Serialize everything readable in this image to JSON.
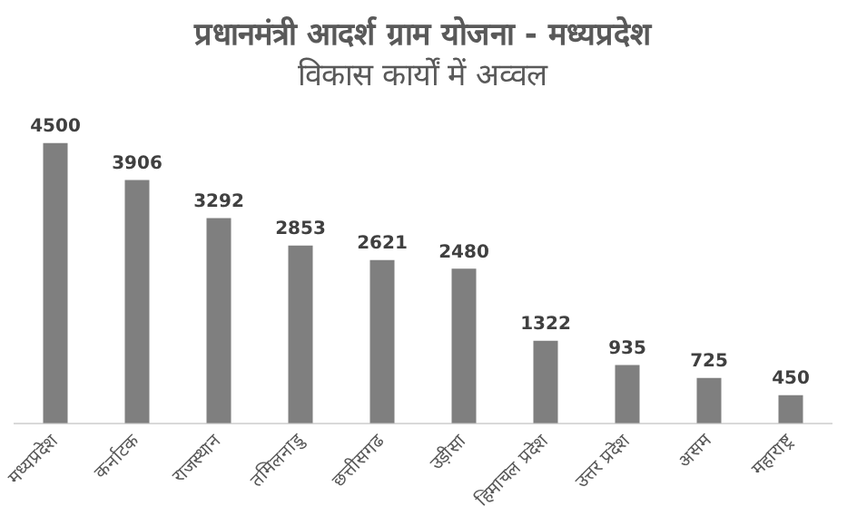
{
  "chart_data": {
    "type": "bar",
    "title": "प्रधानमंत्री आदर्श ग्राम योजना - मध्यप्रदेश",
    "subtitle": "विकास कार्यों में अव्वल",
    "categories": [
      "मध्यप्रदेश",
      "कर्नाटक",
      "राजस्थान",
      "तमिलनाडु",
      "छत्तीसगढ",
      "उड़ीसा",
      "हिमाचल प्रदेश",
      "उत्तर प्रदेश",
      "असम",
      "महाराष्ट्र"
    ],
    "values": [
      4500,
      3906,
      3292,
      2853,
      2621,
      2480,
      1322,
      935,
      725,
      450
    ],
    "color": "#7f7f7f",
    "data_labels": true,
    "grid": false,
    "legend": false
  }
}
